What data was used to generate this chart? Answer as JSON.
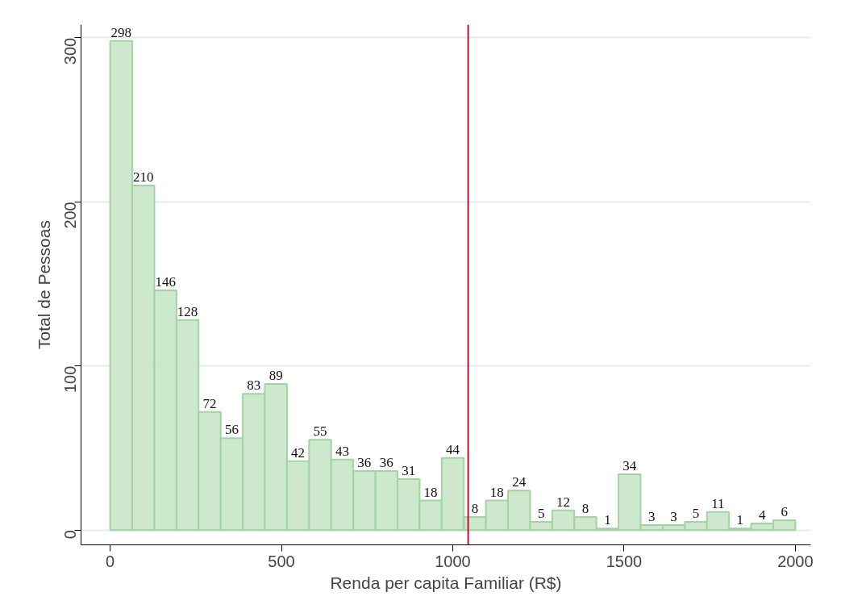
{
  "chart_data": {
    "type": "histogram",
    "xlabel": "Renda per capita Familiar (R$)",
    "ylabel": "Total de Pessoas",
    "bins": [
      0,
      64.52,
      129.03,
      193.55,
      258.06,
      322.58,
      387.1,
      451.61,
      516.13,
      580.65,
      645.16,
      709.68,
      774.19,
      838.71,
      903.23,
      967.74,
      1032.26,
      1096.77,
      1161.29,
      1225.81,
      1290.32,
      1354.84,
      1419.35,
      1483.87,
      1548.39,
      1612.9,
      1677.42,
      1741.94,
      1806.45,
      1870.97,
      1935.48,
      2000
    ],
    "values": [
      298,
      210,
      146,
      128,
      72,
      56,
      83,
      89,
      42,
      55,
      43,
      36,
      36,
      31,
      18,
      44,
      8,
      18,
      24,
      5,
      12,
      8,
      1,
      34,
      3,
      3,
      5,
      11,
      1,
      4,
      6
    ],
    "color": "#c8e6c8",
    "data_labels": true,
    "xlim": [
      -85,
      2045
    ],
    "ylim": [
      -9,
      308
    ],
    "xticks": [
      0,
      500,
      1000,
      1500,
      2000
    ],
    "yticks": [
      0,
      100,
      200,
      300
    ],
    "grid": "y",
    "ref_lines": [
      {
        "axis": "x",
        "value": 1045,
        "color": "#c8102e"
      }
    ]
  }
}
